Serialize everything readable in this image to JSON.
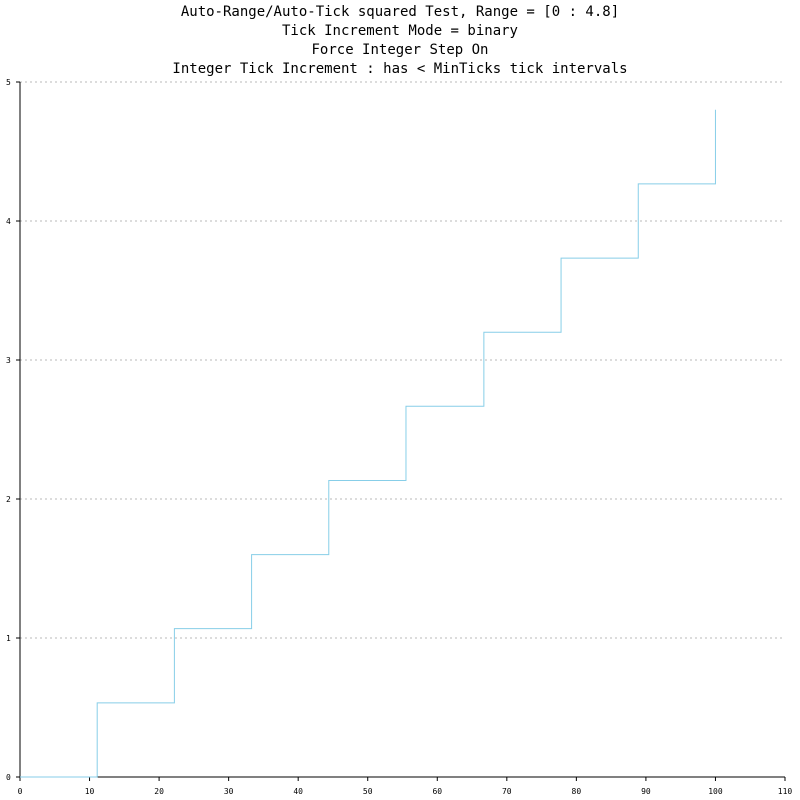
{
  "chart_data": {
    "type": "line",
    "title_lines": [
      "Auto-Range/Auto-Tick squared Test, Range = [0 : 4.8]",
      "Tick Increment Mode = binary",
      "Force Integer Step On",
      "Integer Tick Increment : has < MinTicks tick intervals"
    ],
    "xlabel": "",
    "ylabel": "",
    "xlim": [
      0,
      110
    ],
    "ylim": [
      0,
      5
    ],
    "x_ticks": [
      0,
      10,
      20,
      30,
      40,
      50,
      60,
      70,
      80,
      90,
      100,
      110
    ],
    "y_ticks": [
      0,
      1,
      2,
      3,
      4,
      5
    ],
    "grid": "horizontal dashed",
    "series": [
      {
        "step": true,
        "color": "#87cee8",
        "x": [
          0,
          11.1,
          22.2,
          33.3,
          44.4,
          55.5,
          66.7,
          77.8,
          88.9,
          100
        ],
        "y": [
          0,
          0.533,
          1.067,
          1.6,
          2.133,
          2.667,
          3.2,
          3.733,
          4.267,
          4.8
        ]
      }
    ]
  }
}
